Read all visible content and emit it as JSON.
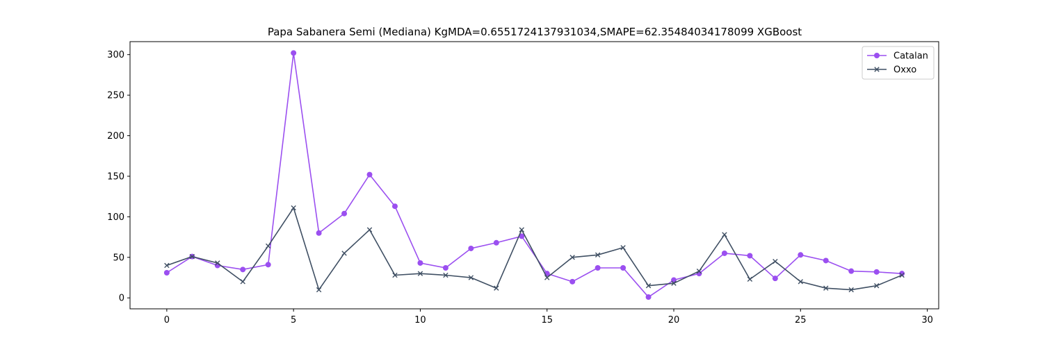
{
  "chart_data": {
    "type": "line",
    "title": "Papa Sabanera Semi (Mediana) KgMDA=0.6551724137931034,SMAPE=62.35484034178099 XGBoost",
    "xlabel": "",
    "ylabel": "",
    "xlim": [
      -1.45,
      30.45
    ],
    "ylim": [
      -13.5,
      316
    ],
    "xticks": [
      0,
      5,
      10,
      15,
      20,
      25,
      30
    ],
    "yticks": [
      0,
      50,
      100,
      150,
      200,
      250,
      300
    ],
    "grid": false,
    "legend_position": "top-right",
    "x": [
      0,
      1,
      2,
      3,
      4,
      5,
      6,
      7,
      8,
      9,
      10,
      11,
      12,
      13,
      14,
      15,
      16,
      17,
      18,
      19,
      20,
      21,
      22,
      23,
      24,
      25,
      26,
      27,
      28,
      29
    ],
    "series": [
      {
        "name": "Catalan",
        "color": "#9b4ff0",
        "marker": "circle",
        "values": [
          31,
          51,
          40,
          35,
          41,
          302,
          80,
          104,
          152,
          113,
          43,
          37,
          61,
          68,
          76,
          30,
          20,
          37,
          37,
          1,
          22,
          30,
          55,
          52,
          24,
          53,
          46,
          33,
          32,
          30
        ]
      },
      {
        "name": "Oxxo",
        "color": "#3f4f63",
        "marker": "x",
        "values": [
          40,
          51,
          43,
          20,
          64,
          111,
          10,
          55,
          84,
          28,
          30,
          28,
          25,
          12,
          84,
          25,
          50,
          53,
          62,
          15,
          18,
          33,
          78,
          23,
          45,
          20,
          12,
          10,
          15,
          28
        ]
      }
    ]
  }
}
